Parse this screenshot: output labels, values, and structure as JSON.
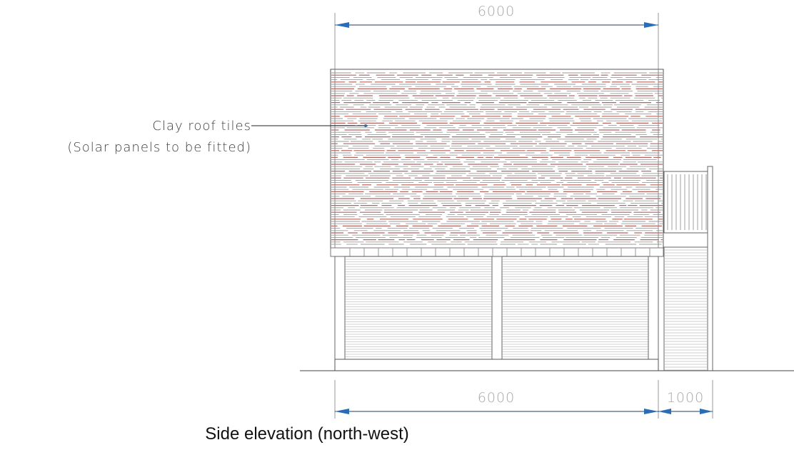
{
  "drawing": {
    "dimensions": {
      "top": "6000",
      "bottom_main": "6000",
      "bottom_extension": "1000"
    },
    "annotation": {
      "line1": "Clay roof tiles",
      "line2": "(Solar panels to be fitted)"
    },
    "caption": "Side elevation (north-west)",
    "colors": {
      "tile_red": "#b5645f",
      "tile_grey": "#9a9a9a",
      "dimension_line": "#1f3b5a",
      "arrow_blue": "#2a6db5",
      "dimension_text": "#a7a7a7",
      "outline": "#555555"
    }
  }
}
